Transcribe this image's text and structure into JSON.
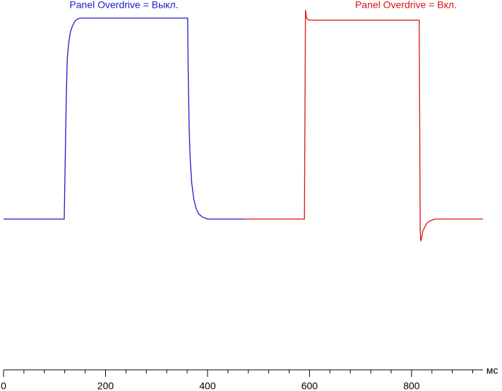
{
  "chart_data": {
    "type": "line",
    "x_label": "мс",
    "xlim": [
      0,
      940
    ],
    "ylim": [
      -0.75,
      1.09
    ],
    "xticks": [
      0,
      200,
      400,
      600,
      800
    ],
    "x_minor_ticks": [
      40,
      80,
      120,
      160,
      240,
      280,
      320,
      360,
      440,
      480,
      520,
      560,
      640,
      680,
      720,
      760,
      840,
      880,
      920
    ],
    "series": [
      {
        "name": "Panel Overdrive = Выкл.",
        "color": "#1a1acc",
        "x": [
          0,
          119,
          121,
          123,
          125,
          128,
          131,
          135,
          140,
          145,
          150,
          200,
          300,
          361,
          362,
          364,
          366,
          369,
          373,
          378,
          383,
          390,
          400,
          472
        ],
        "values": [
          0,
          0,
          0.3,
          0.6,
          0.8,
          0.88,
          0.93,
          0.96,
          0.985,
          0.995,
          1,
          1,
          1,
          1,
          0.75,
          0.45,
          0.3,
          0.18,
          0.1,
          0.05,
          0.025,
          0.01,
          0,
          0
        ]
      },
      {
        "name": "Panel Overdrive = Вкл.",
        "color": "#dd1111",
        "x": [
          472,
          590,
          591,
          592,
          594,
          598,
          650,
          700,
          815,
          816,
          817,
          818,
          820,
          822,
          826,
          830,
          836,
          845,
          860,
          940
        ],
        "values": [
          0,
          0,
          0.5,
          1.04,
          1.0,
          0.99,
          0.99,
          0.99,
          0.99,
          0.5,
          -0.05,
          -0.11,
          -0.09,
          -0.06,
          -0.04,
          -0.02,
          -0.01,
          0,
          0,
          0
        ]
      }
    ]
  }
}
